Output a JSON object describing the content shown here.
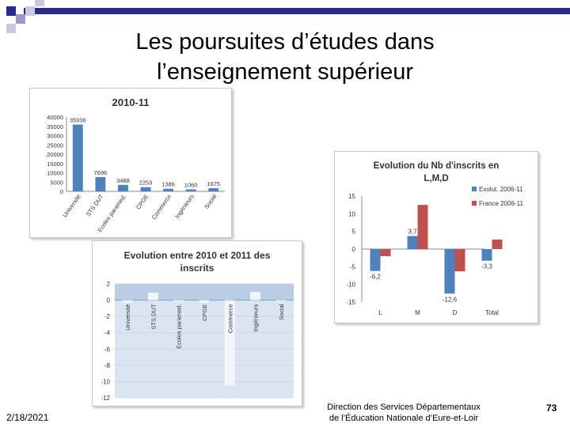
{
  "slide": {
    "title_line1": "Les poursuites d’études dans",
    "title_line2": "l’enseignement supérieur",
    "date": "2/18/2021",
    "org_line1": "Direction des Services Départementaux",
    "org_line2": "de l’Éducation Nationale d’Eure-et-Loir",
    "page": "73"
  },
  "colors": {
    "blue": "#4f81bd",
    "red": "#c0504d",
    "deco_blue": "#2a2a8a"
  },
  "chart_data": [
    {
      "type": "bar",
      "title": "2010-11",
      "categories": [
        "Université",
        "STS DUT",
        "Ecoles paramed.",
        "CPGE",
        "Commerce",
        "Ingénieurs",
        "Social"
      ],
      "values": [
        35936,
        7696,
        3488,
        2253,
        1386,
        1060,
        1675
      ],
      "value_labels": [
        "35936",
        "7696",
        "3488",
        "2253",
        "1386",
        "1060",
        "1675"
      ],
      "yticks": [
        "0",
        "5000",
        "10000",
        "15000",
        "20000",
        "25000",
        "30000",
        "35000",
        "40000"
      ],
      "ylim": [
        0,
        40000
      ]
    },
    {
      "type": "bar",
      "title": "Evolution entre 2010 et 2011 des inscrits",
      "categories": [
        "Université",
        "STS DUT",
        "Ecoles paramed.",
        "CPGE",
        "Commerce",
        "Ingénieurs",
        "Social"
      ],
      "values": [
        -0.3,
        0.9,
        -0.2,
        -0.3,
        -10.5,
        1.0,
        -0.2
      ],
      "yticks": [
        "-12",
        "-10",
        "-8",
        "-6",
        "-4",
        "-2",
        "0",
        "2"
      ],
      "ylim": [
        -12,
        2
      ]
    },
    {
      "type": "bar",
      "title": "Evolution du Nb d'inscrits en L,M,D",
      "categories": [
        "L",
        "M",
        "D",
        "Total"
      ],
      "series": [
        {
          "name": "Evolut. 2006-11",
          "values": [
            -6.2,
            3.7,
            -12.6,
            -3.3
          ]
        },
        {
          "name": "France 2006-11",
          "values": [
            -2,
            12.5,
            -6.3,
            2.7
          ]
        }
      ],
      "value_labels": [
        "-6,2",
        "3,7",
        "-12,6",
        "-3,3"
      ],
      "yticks": [
        "-15",
        "-10",
        "-5",
        "0",
        "5",
        "10",
        "15"
      ],
      "ylim": [
        -15,
        15
      ],
      "legend": "right"
    }
  ]
}
